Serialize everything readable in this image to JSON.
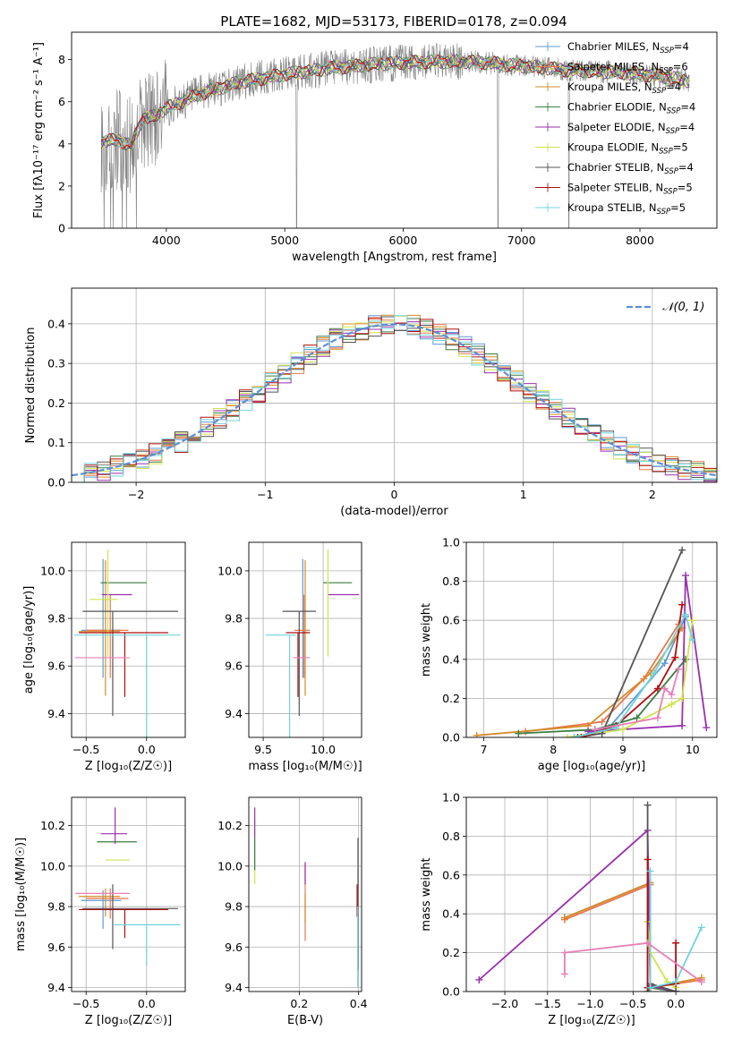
{
  "title": "PLATE=1682, MJD=53173, FIBERID=0178, z=0.094",
  "colors": {
    "Chabrier MILES": "#5b9bd5",
    "Salpeter MILES": "#e8784d",
    "Kroupa MILES": "#d68b28",
    "Chabrier ELODIE": "#3a7d44",
    "Salpeter ELODIE": "#9a2fb0",
    "Kroupa ELODIE": "#cfe34a",
    "Chabrier STELIB": "#555555",
    "Salpeter STELIB": "#b00e0e",
    "Kroupa STELIB": "#6fd3dc",
    "data": "#808080",
    "extra_pink": "#e87fb8",
    "normal": "#5b8fd6"
  },
  "legend_entries": [
    {
      "pre": "Chabrier MILES, N",
      "sub": "SSP",
      "post": "=4"
    },
    {
      "pre": "Salpeter MILES, N",
      "sub": "SSP",
      "post": "=6"
    },
    {
      "pre": "Kroupa MILES, N",
      "sub": "SSP",
      "post": "=4"
    },
    {
      "pre": "Chabrier ELODIE, N",
      "sub": "SSP",
      "post": "=4"
    },
    {
      "pre": "Salpeter ELODIE, N",
      "sub": "SSP",
      "post": "=4"
    },
    {
      "pre": "Kroupa ELODIE, N",
      "sub": "SSP",
      "post": "=5"
    },
    {
      "pre": "Chabrier STELIB, N",
      "sub": "SSP",
      "post": "=4"
    },
    {
      "pre": "Salpeter STELIB, N",
      "sub": "SSP",
      "post": "=5"
    },
    {
      "pre": "Kroupa STELIB, N",
      "sub": "SSP",
      "post": "=5"
    }
  ],
  "chart_data": [
    {
      "id": "spectrum",
      "type": "line",
      "xlabel": "wavelength [Angstrom, rest frame]",
      "ylabel": "Flux [fλ10⁻¹⁷ erg cm⁻² s⁻¹ A⁻¹]",
      "xlim": [
        3200,
        8650
      ],
      "ylim": [
        0,
        9.3
      ],
      "xticks": [
        4000,
        5000,
        6000,
        7000,
        8000
      ],
      "yticks": [
        0,
        2,
        4,
        6,
        8
      ],
      "continuum": {
        "x": [
          3450,
          3600,
          3700,
          3800,
          3900,
          4000,
          4300,
          4600,
          5000,
          5400,
          5800,
          6200,
          6600,
          7000,
          7400,
          7800,
          8200,
          8400
        ],
        "y": [
          4.1,
          4.2,
          3.9,
          5.2,
          5.3,
          5.7,
          6.4,
          6.9,
          7.3,
          7.6,
          7.8,
          7.9,
          7.9,
          7.7,
          7.5,
          7.4,
          7.2,
          7.0
        ]
      }
    },
    {
      "id": "residuals",
      "type": "histogram",
      "xlabel": "(data-model)/error",
      "ylabel": "Normed distribution",
      "xlim": [
        -2.5,
        2.5
      ],
      "ylim": [
        0,
        0.49
      ],
      "xticks": [
        -2,
        -1,
        0,
        1,
        2
      ],
      "yticks": [
        0.0,
        0.1,
        0.2,
        0.3,
        0.4
      ],
      "legend": "𝒩(0, 1)",
      "bin_width": 0.1,
      "reference_curve": "standard normal pdf"
    },
    {
      "id": "age_vs_Z",
      "type": "errorbar",
      "xlabel": "Z [log₁₀(Z/Z☉)]",
      "ylabel": "age  [log₁₀(age/yr)]",
      "xlim": [
        -0.62,
        0.32
      ],
      "ylim": [
        9.3,
        10.12
      ],
      "xticks": [
        -0.5,
        0.0
      ],
      "yticks": [
        9.4,
        9.6,
        9.8,
        10.0
      ],
      "points": [
        {
          "series": "Chabrier MILES",
          "x": -0.36,
          "xerr": [
            0.18,
            0.15
          ],
          "y": 9.75,
          "yerr": [
            0.2,
            0.3
          ]
        },
        {
          "series": "Salpeter MILES",
          "x": -0.3,
          "xerr": [
            0.2,
            0.15
          ],
          "y": 9.75,
          "yerr": [
            0.2,
            0.15
          ]
        },
        {
          "series": "Kroupa MILES",
          "x": -0.34,
          "xerr": [
            0.22,
            0.12
          ],
          "y": 9.745,
          "yerr": [
            0.27,
            0.3
          ]
        },
        {
          "series": "Chabrier ELODIE",
          "x": -0.2,
          "xerr": [
            0.18,
            0.2
          ],
          "y": 9.95,
          "yerr": [
            0.0,
            0.0
          ]
        },
        {
          "series": "Salpeter ELODIE",
          "x": -0.24,
          "xerr": [
            0.13,
            0.12
          ],
          "y": 9.9,
          "yerr": [
            0.0,
            0.0
          ]
        },
        {
          "series": "Kroupa ELODIE",
          "x": -0.32,
          "xerr": [
            0.15,
            0.08
          ],
          "y": 9.88,
          "yerr": [
            0.24,
            0.21
          ]
        },
        {
          "series": "Chabrier STELIB",
          "x": -0.28,
          "xerr": [
            0.25,
            0.54
          ],
          "y": 9.83,
          "yerr": [
            0.44,
            0.0
          ]
        },
        {
          "series": "Salpeter STELIB",
          "x": -0.18,
          "xerr": [
            0.38,
            0.36
          ],
          "y": 9.74,
          "yerr": [
            0.27,
            0.0
          ]
        },
        {
          "series": "Kroupa STELIB",
          "x": 0.0,
          "xerr": [
            0.6,
            0.28
          ],
          "y": 9.73,
          "yerr": [
            0.43,
            0.0
          ]
        },
        {
          "series": "extra",
          "x": -0.36,
          "xerr": [
            0.23,
            0.22
          ],
          "y": 9.635,
          "yerr": [
            0.0,
            0.0
          ]
        }
      ]
    },
    {
      "id": "age_vs_mass",
      "type": "errorbar",
      "xlabel": "mass [log₁₀(M/M☉)]",
      "ylabel": "",
      "xlim": [
        9.38,
        10.32
      ],
      "ylim": [
        9.3,
        10.12
      ],
      "xticks": [
        9.5,
        10.0
      ],
      "yticks": [
        9.4,
        9.6,
        9.8,
        10.0
      ],
      "points": [
        {
          "series": "Chabrier MILES",
          "x": 9.83,
          "xerr": [
            0.0,
            0.0
          ],
          "y": 9.75,
          "yerr": [
            0.2,
            0.3
          ]
        },
        {
          "series": "Salpeter MILES",
          "x": 9.84,
          "xerr": [
            0.08,
            0.05
          ],
          "y": 9.75,
          "yerr": [
            0.2,
            0.15
          ]
        },
        {
          "series": "Kroupa MILES",
          "x": 9.85,
          "xerr": [
            0.0,
            0.0
          ],
          "y": 9.745,
          "yerr": [
            0.27,
            0.3
          ]
        },
        {
          "series": "Chabrier ELODIE",
          "x": 10.12,
          "xerr": [
            0.12,
            0.12
          ],
          "y": 9.95,
          "yerr": [
            0.0,
            0.0
          ]
        },
        {
          "series": "Salpeter ELODIE",
          "x": 10.17,
          "xerr": [
            0.13,
            0.13
          ],
          "y": 9.9,
          "yerr": [
            0.0,
            0.0
          ]
        },
        {
          "series": "Kroupa ELODIE",
          "x": 10.04,
          "xerr": [
            0.0,
            0.0
          ],
          "y": 9.88,
          "yerr": [
            0.24,
            0.21
          ]
        },
        {
          "series": "Chabrier STELIB",
          "x": 9.8,
          "xerr": [
            0.14,
            0.14
          ],
          "y": 9.83,
          "yerr": [
            0.44,
            0.0
          ]
        },
        {
          "series": "Salpeter STELIB",
          "x": 9.79,
          "xerr": [
            0.1,
            0.1
          ],
          "y": 9.74,
          "yerr": [
            0.27,
            0.0
          ]
        },
        {
          "series": "Kroupa STELIB",
          "x": 9.72,
          "xerr": [
            0.2,
            0.05
          ],
          "y": 9.73,
          "yerr": [
            0.43,
            0.0
          ]
        },
        {
          "series": "extra",
          "x": 9.86,
          "xerr": [
            0.11,
            0.03
          ],
          "y": 9.635,
          "yerr": [
            0.0,
            0.0
          ]
        }
      ]
    },
    {
      "id": "weight_vs_age",
      "type": "line",
      "xlabel": "age  [log₁₀(age/yr)]",
      "ylabel": "mass weight",
      "xlim": [
        6.75,
        10.35
      ],
      "ylim": [
        0,
        1.0
      ],
      "xticks": [
        7,
        8,
        9,
        10
      ],
      "yticks": [
        0.0,
        0.2,
        0.4,
        0.6,
        0.8,
        1.0
      ],
      "series": [
        {
          "name": "Chabrier MILES",
          "x": [
            8.3,
            8.8,
            9.6,
            9.9
          ],
          "y": [
            0.0,
            0.05,
            0.38,
            0.62
          ]
        },
        {
          "name": "Salpeter MILES",
          "x": [
            7.6,
            8.7,
            9.3,
            9.8
          ],
          "y": [
            0.03,
            0.08,
            0.3,
            0.58
          ]
        },
        {
          "name": "Kroupa MILES",
          "x": [
            6.9,
            8.5,
            9.4,
            9.85
          ],
          "y": [
            0.01,
            0.06,
            0.33,
            0.56
          ]
        },
        {
          "name": "Chabrier ELODIE",
          "x": [
            7.5,
            8.6,
            9.2,
            9.9
          ],
          "y": [
            0.02,
            0.04,
            0.1,
            0.4
          ]
        },
        {
          "name": "Salpeter ELODIE",
          "x": [
            8.5,
            9.85,
            9.9,
            10.2
          ],
          "y": [
            0.03,
            0.06,
            0.83,
            0.05
          ]
        },
        {
          "name": "Kroupa ELODIE",
          "x": [
            8.2,
            9.0,
            9.7,
            9.85,
            10.0
          ],
          "y": [
            0.0,
            0.04,
            0.17,
            0.2,
            0.6
          ]
        },
        {
          "name": "Chabrier STELIB",
          "x": [
            8.35,
            8.7,
            9.85
          ],
          "y": [
            0.0,
            0.02,
            0.96
          ]
        },
        {
          "name": "Salpeter STELIB",
          "x": [
            8.4,
            8.9,
            9.5,
            9.75,
            9.85
          ],
          "y": [
            0.0,
            0.06,
            0.25,
            0.41,
            0.68
          ]
        },
        {
          "name": "Kroupa STELIB",
          "x": [
            8.3,
            8.9,
            9.45,
            9.9,
            10.0
          ],
          "y": [
            0.0,
            0.05,
            0.33,
            0.63,
            0.5
          ]
        },
        {
          "name": "extra",
          "x": [
            8.6,
            9.5,
            9.6,
            9.7,
            9.8
          ],
          "y": [
            0.04,
            0.1,
            0.25,
            0.22,
            0.35
          ]
        }
      ]
    },
    {
      "id": "mass_vs_Z",
      "type": "errorbar",
      "xlabel": "Z [log₁₀(Z/Z☉)]",
      "ylabel": "mass [log₁₀(M/M☉)]",
      "xlim": [
        -0.62,
        0.32
      ],
      "ylim": [
        9.38,
        10.34
      ],
      "xticks": [
        -0.5,
        0.0
      ],
      "yticks": [
        9.4,
        9.6,
        9.8,
        10.0,
        10.2
      ],
      "points": [
        {
          "series": "Chabrier MILES",
          "x": -0.36,
          "xerr": [
            0.18,
            0.15
          ],
          "y": 9.83,
          "yerr": [
            0.14,
            0.05
          ]
        },
        {
          "series": "Salpeter MILES",
          "x": -0.3,
          "xerr": [
            0.2,
            0.15
          ],
          "y": 9.84,
          "yerr": [
            0.1,
            0.05
          ]
        },
        {
          "series": "Kroupa MILES",
          "x": -0.34,
          "xerr": [
            0.22,
            0.12
          ],
          "y": 9.85,
          "yerr": [
            0.1,
            0.04
          ]
        },
        {
          "series": "Chabrier ELODIE",
          "x": -0.24,
          "xerr": [
            0.17,
            0.16
          ],
          "y": 10.12,
          "yerr": [
            0.0,
            0.0
          ]
        },
        {
          "series": "Salpeter ELODIE",
          "x": -0.26,
          "xerr": [
            0.12,
            0.1
          ],
          "y": 10.16,
          "yerr": [
            0.05,
            0.13
          ]
        },
        {
          "series": "Kroupa ELODIE",
          "x": -0.24,
          "xerr": [
            0.1,
            0.1
          ],
          "y": 10.03,
          "yerr": [
            0.0,
            0.0
          ]
        },
        {
          "series": "Chabrier STELIB",
          "x": -0.28,
          "xerr": [
            0.25,
            0.54
          ],
          "y": 9.79,
          "yerr": [
            0.2,
            0.12
          ]
        },
        {
          "series": "Salpeter STELIB",
          "x": -0.18,
          "xerr": [
            0.38,
            0.36
          ],
          "y": 9.785,
          "yerr": [
            0.14,
            0.0
          ]
        },
        {
          "series": "Kroupa STELIB",
          "x": 0.0,
          "xerr": [
            0.27,
            0.28
          ],
          "y": 9.71,
          "yerr": [
            0.2,
            0.0
          ]
        },
        {
          "series": "extra",
          "x": -0.36,
          "xerr": [
            0.23,
            0.22
          ],
          "y": 9.865,
          "yerr": [
            0.0,
            0.0
          ]
        }
      ]
    },
    {
      "id": "mass_vs_EBV",
      "type": "errorbar",
      "xlabel": "E(B-V)",
      "ylabel": "",
      "xlim": [
        0.03,
        0.41
      ],
      "ylim": [
        9.38,
        10.34
      ],
      "xticks": [
        0.2,
        0.4
      ],
      "yticks": [
        9.4,
        9.6,
        9.8,
        10.0,
        10.2
      ],
      "points": [
        {
          "series": "Kroupa ELODIE",
          "x": 0.05,
          "y": 10.06,
          "yerr": [
            0.15,
            0.17
          ]
        },
        {
          "series": "Chabrier ELODIE",
          "x": 0.05,
          "y": 10.08,
          "yerr": [
            0.1,
            0.06
          ]
        },
        {
          "series": "Salpeter ELODIE",
          "x": 0.05,
          "y": 10.24,
          "yerr": [
            0.1,
            0.05
          ]
        },
        {
          "series": "Salpeter MILES",
          "x": 0.22,
          "y": 9.83,
          "yerr": [
            0.2,
            0.18
          ]
        },
        {
          "series": "Salpeter ELODIE",
          "x": 0.22,
          "y": 9.96,
          "yerr": [
            0.05,
            0.06
          ]
        },
        {
          "series": "Kroupa MILES",
          "x": 0.22,
          "y": 9.8,
          "yerr": [
            0.08,
            0.06
          ]
        },
        {
          "series": "Salpeter STELIB",
          "x": 0.395,
          "y": 9.85,
          "yerr": [
            0.1,
            0.06
          ]
        },
        {
          "series": "Chabrier STELIB",
          "x": 0.398,
          "y": 9.79,
          "yerr": [
            0.3,
            0.35
          ]
        },
        {
          "series": "Kroupa STELIB",
          "x": 0.397,
          "y": 9.6,
          "yerr": [
            0.2,
            0.2
          ]
        }
      ]
    },
    {
      "id": "weight_vs_Z",
      "type": "line",
      "xlabel": "Z [log₁₀(Z/Z☉)]",
      "ylabel": "mass weight",
      "xlim": [
        -2.45,
        0.48
      ],
      "ylim": [
        0,
        1.0
      ],
      "xticks": [
        -2.0,
        -1.5,
        -1.0,
        -0.5,
        0.0
      ],
      "yticks": [
        0.0,
        0.2,
        0.4,
        0.6,
        0.8,
        1.0
      ],
      "series": [
        {
          "name": "Chabrier MILES",
          "x": [
            -1.3,
            -0.3,
            -0.3,
            0.0
          ],
          "y": [
            0.38,
            0.56,
            0.02,
            0.04
          ]
        },
        {
          "name": "Salpeter MILES",
          "x": [
            -1.3,
            -0.3,
            -0.3,
            0.3
          ],
          "y": [
            0.37,
            0.55,
            0.02,
            0.06
          ]
        },
        {
          "name": "Kroupa MILES",
          "x": [
            -1.3,
            -0.3,
            -0.3,
            0.3
          ],
          "y": [
            0.38,
            0.56,
            0.02,
            0.07
          ]
        },
        {
          "name": "Chabrier ELODIE",
          "x": [
            -0.33,
            -0.3,
            0.0
          ],
          "y": [
            0.0,
            0.02,
            0.0
          ]
        },
        {
          "name": "Salpeter ELODIE",
          "x": [
            -2.3,
            -0.33,
            -0.3,
            0.0
          ],
          "y": [
            0.06,
            0.83,
            0.03,
            0.0
          ]
        },
        {
          "name": "Kroupa ELODIE",
          "x": [
            -0.33,
            -0.3,
            -0.1,
            0.0
          ],
          "y": [
            0.36,
            0.2,
            0.05,
            0.02
          ]
        },
        {
          "name": "Chabrier STELIB",
          "x": [
            -0.33,
            -0.33,
            -0.3,
            0.0
          ],
          "y": [
            0.96,
            0.02,
            0.04,
            0.0
          ]
        },
        {
          "name": "Salpeter STELIB",
          "x": [
            -0.33,
            -0.33,
            0.0,
            0.0
          ],
          "y": [
            0.68,
            0.02,
            0.04,
            0.25
          ]
        },
        {
          "name": "Kroupa STELIB",
          "x": [
            -0.3,
            -0.3,
            0.0,
            0.3
          ],
          "y": [
            0.62,
            0.02,
            0.05,
            0.33
          ]
        },
        {
          "name": "extra",
          "x": [
            -1.3,
            -1.3,
            -0.33,
            0.3
          ],
          "y": [
            0.09,
            0.2,
            0.25,
            0.05
          ]
        }
      ]
    }
  ]
}
